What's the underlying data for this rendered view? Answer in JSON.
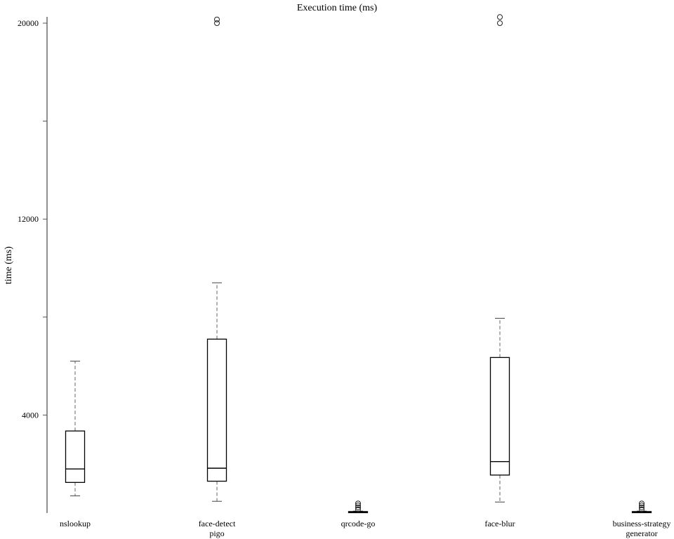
{
  "chart_data": {
    "type": "box",
    "title": "Execution time (ms)",
    "xlabel": "",
    "ylabel": "time (ms)",
    "ylim": [
      0,
      20250
    ],
    "yticks": [
      {
        "value": 20000,
        "label": "20000"
      },
      {
        "value": 16000,
        "label": ""
      },
      {
        "value": 12000,
        "label": "12000"
      },
      {
        "value": 8000,
        "label": ""
      },
      {
        "value": 4000,
        "label": "4000"
      }
    ],
    "grid": false,
    "categories": [
      {
        "lines": [
          "nslookup"
        ]
      },
      {
        "lines": [
          "face-detect",
          "pigo"
        ]
      },
      {
        "lines": [
          "qrcode-go"
        ]
      },
      {
        "lines": [
          "face-blur"
        ]
      },
      {
        "lines": [
          "business-strategy",
          "generator"
        ]
      }
    ],
    "boxes": [
      {
        "whisker_low": 700,
        "q1": 1250,
        "median": 1800,
        "q3": 3350,
        "whisker_high": 6200,
        "outliers": []
      },
      {
        "whisker_low": 480,
        "q1": 1300,
        "median": 1830,
        "q3": 7100,
        "whisker_high": 9400,
        "outliers": [
          20000,
          20150
        ]
      },
      {
        "whisker_low": 15,
        "q1": 15,
        "median": 30,
        "q3": 60,
        "whisker_high": 80,
        "outliers": [
          150,
          230,
          310,
          390
        ]
      },
      {
        "whisker_low": 450,
        "q1": 1550,
        "median": 2100,
        "q3": 6350,
        "whisker_high": 7950,
        "outliers": [
          20000,
          20250
        ]
      },
      {
        "whisker_low": 15,
        "q1": 15,
        "median": 30,
        "q3": 60,
        "whisker_high": 80,
        "outliers": [
          150,
          230,
          310,
          390
        ]
      }
    ]
  }
}
